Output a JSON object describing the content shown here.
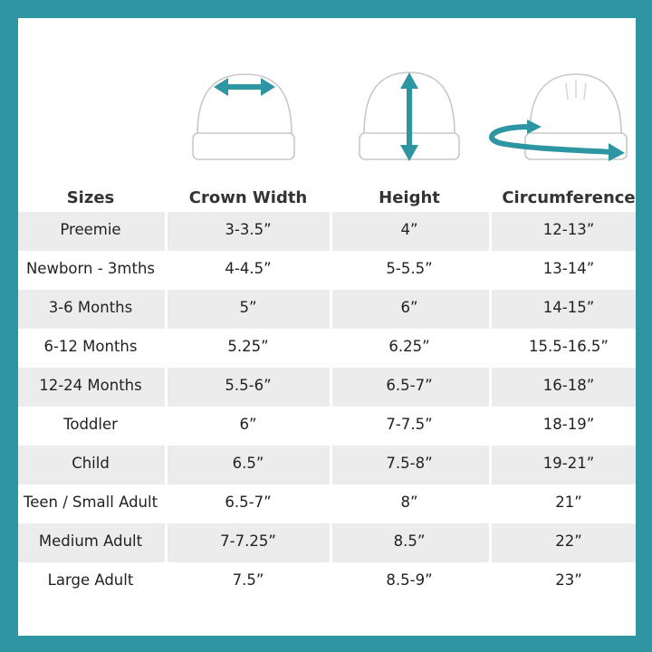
{
  "headers": {
    "sizes": "Sizes",
    "crown_width": "Crown Width",
    "height": "Height",
    "circumference": "Circumference"
  },
  "accent_color": "#2e96a3",
  "rows": [
    {
      "size": "Preemie",
      "crown": "3-3.5”",
      "height": "4”",
      "circ": "12-13”"
    },
    {
      "size": "Newborn - 3mths",
      "crown": "4-4.5”",
      "height": "5-5.5”",
      "circ": "13-14”"
    },
    {
      "size": "3-6 Months",
      "crown": "5”",
      "height": "6”",
      "circ": "14-15”"
    },
    {
      "size": "6-12 Months",
      "crown": "5.25”",
      "height": "6.25”",
      "circ": "15.5-16.5”"
    },
    {
      "size": "12-24 Months",
      "crown": "5.5-6”",
      "height": "6.5-7”",
      "circ": "16-18”"
    },
    {
      "size": "Toddler",
      "crown": "6”",
      "height": "7-7.5”",
      "circ": "18-19”"
    },
    {
      "size": "Child",
      "crown": "6.5”",
      "height": "7.5-8”",
      "circ": "19-21”"
    },
    {
      "size": "Teen / Small Adult",
      "crown": "6.5-7”",
      "height": "8”",
      "circ": "21”"
    },
    {
      "size": "Medium Adult",
      "crown": "7-7.25”",
      "height": "8.5”",
      "circ": "22”"
    },
    {
      "size": "Large Adult",
      "crown": "7.5”",
      "height": "8.5-9”",
      "circ": "23”"
    }
  ]
}
